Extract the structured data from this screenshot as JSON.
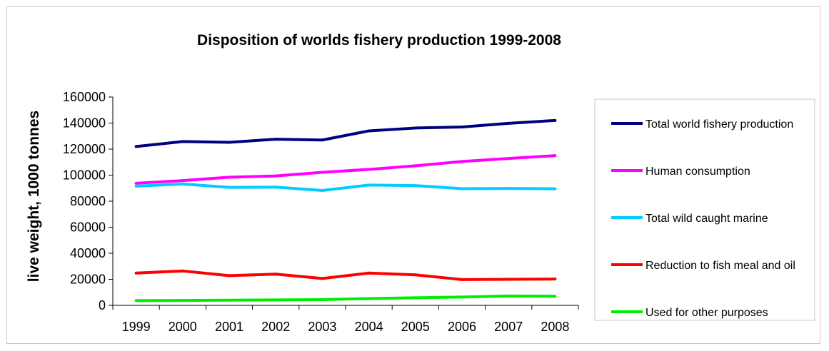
{
  "chart_data": {
    "type": "line",
    "title": "Disposition of worlds fishery production 1999-2008",
    "xlabel": "",
    "ylabel": "live weight, 1000 tonnes",
    "ylim": [
      0,
      160000
    ],
    "yticks": [
      "0",
      "20000",
      "40000",
      "60000",
      "80000",
      "100000",
      "120000",
      "140000",
      "160000"
    ],
    "categories": [
      "1999",
      "2000",
      "2001",
      "2002",
      "2003",
      "2004",
      "2005",
      "2006",
      "2007",
      "2008"
    ],
    "grid": false,
    "legend_position": "right",
    "series": [
      {
        "name": "Total world fishery production",
        "color": "#000080",
        "values": [
          122000,
          125800,
          125200,
          127600,
          127000,
          134000,
          136200,
          137000,
          139800,
          142000
        ]
      },
      {
        "name": "Human consumption",
        "color": "#ff00ff",
        "values": [
          93800,
          95800,
          98400,
          99400,
          102200,
          104400,
          107200,
          110500,
          112800,
          115000
        ]
      },
      {
        "name": "Total wild caught marine",
        "color": "#00ccff",
        "values": [
          91600,
          93200,
          90600,
          90800,
          88200,
          92400,
          92000,
          89600,
          89800,
          89500
        ]
      },
      {
        "name": "Reduction to fish meal and oil",
        "color": "#ff0000",
        "values": [
          24800,
          26400,
          22800,
          24000,
          20600,
          24800,
          23400,
          19800,
          20000,
          20200
        ]
      },
      {
        "name": "Used for other purposes",
        "color": "#00ee00",
        "values": [
          3600,
          3800,
          4000,
          4200,
          4400,
          5200,
          5800,
          6400,
          7200,
          7000
        ]
      }
    ]
  }
}
